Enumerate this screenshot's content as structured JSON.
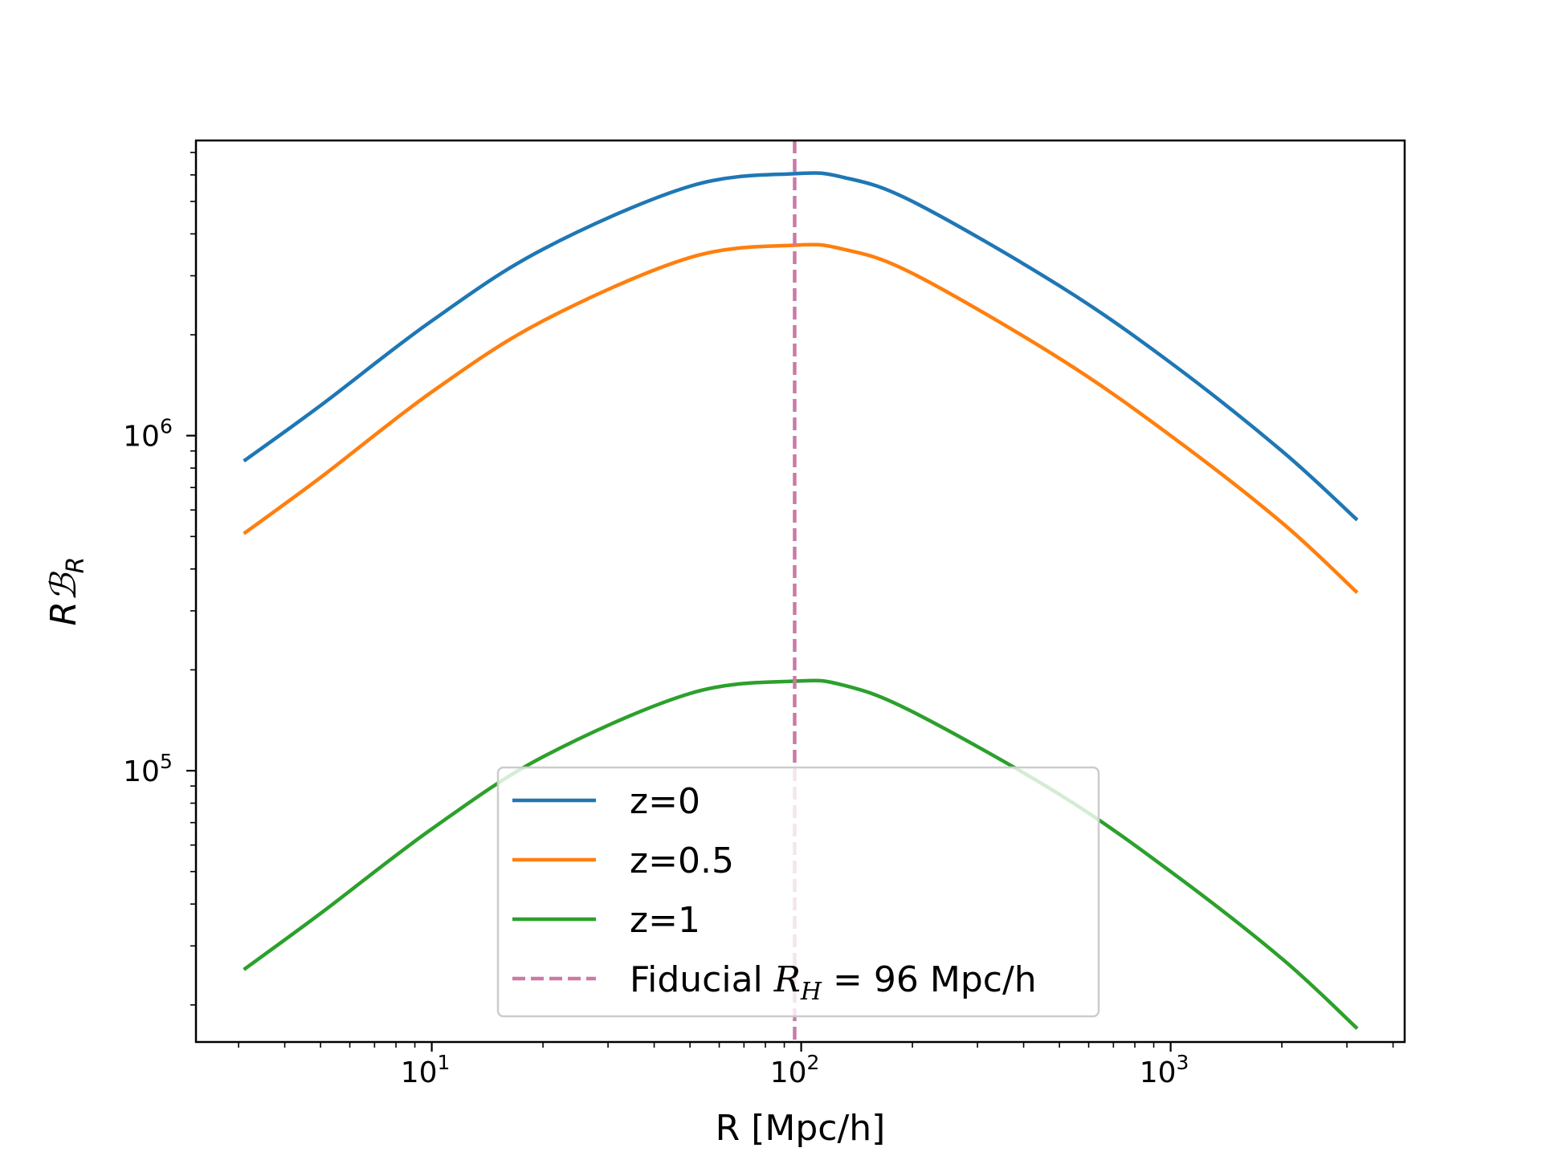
{
  "chart_data": {
    "type": "line",
    "title": "",
    "xlabel": "R [Mpc/h]",
    "ylabel": "RBR",
    "xscale": "log",
    "yscale": "log",
    "xlim": [
      2.3,
      4300
    ],
    "ylim": [
      15500,
      7600000
    ],
    "grid": false,
    "legend_position": "bottom-center",
    "x_ticks": [
      {
        "value": 10,
        "base": "10",
        "exponent": "1"
      },
      {
        "value": 100,
        "base": "10",
        "exponent": "2"
      },
      {
        "value": 1000,
        "base": "10",
        "exponent": "3"
      }
    ],
    "y_ticks": [
      {
        "value": 100000,
        "base": "10",
        "exponent": "5"
      },
      {
        "value": 1000000,
        "base": "10",
        "exponent": "6"
      }
    ],
    "x": [
      3.1,
      5,
      10,
      20,
      50,
      96,
      130,
      200,
      500,
      1000,
      2000,
      3200
    ],
    "series": [
      {
        "name": "z=0",
        "label": "z=0",
        "color": "#1f77b4",
        "values": [
          840000,
          1230000,
          2200000,
          3600000,
          5550000,
          6050000,
          5900000,
          5000000,
          2800000,
          1650000,
          900000,
          560000
        ]
      },
      {
        "name": "z=0.5",
        "label": "z=0.5",
        "color": "#ff7f0e",
        "values": [
          510000,
          750000,
          1350000,
          2200000,
          3400000,
          3700000,
          3600000,
          3050000,
          1700000,
          1000000,
          550000,
          340000
        ]
      },
      {
        "name": "z=1",
        "label": "z=1",
        "color": "#2ca02c",
        "values": [
          25500,
          37500,
          67000,
          110000,
          170000,
          185000,
          180000,
          150000,
          85000,
          50000,
          27500,
          17000
        ]
      }
    ],
    "vline": {
      "x": 96,
      "color": "#cc79a7",
      "style": "dashed",
      "label_text": "Fiducial ",
      "label_math_main": "R",
      "label_math_sub": "H",
      "label_rest": " = 96 Mpc/h"
    }
  }
}
